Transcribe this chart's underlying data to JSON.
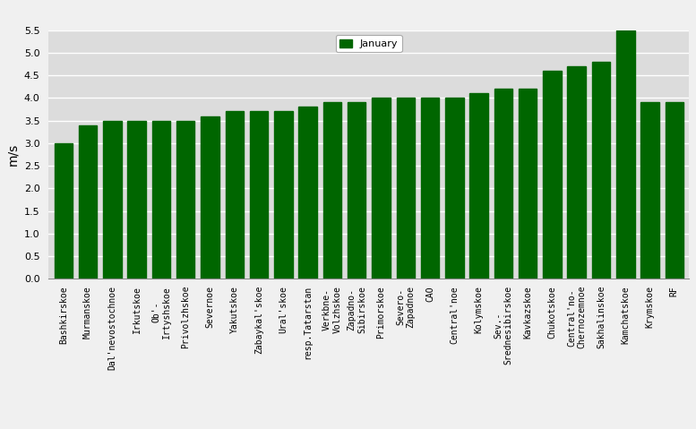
{
  "categories": [
    "Bashkirskoe",
    "Murmanskoe",
    "Dal'nevostochnoe",
    "Irkutskoe",
    "Ob'-\nIrtyshskoe",
    "Privolzhskoe",
    "Severnoe",
    "Yakutskoe",
    "Zabaykal'skoe",
    "Ural'skoe",
    "resp.Tatarstan",
    "Verkbne-\nVolzhskoe",
    "Zapadno-\nSibirskoe",
    "Primorskoe",
    "Severo-\nZapadnoe",
    "CAO",
    "Central'noe",
    "Kolymskoe",
    "Sev.-\nSrednesibirskoe",
    "Kavkazskoe",
    "Chukotskoe",
    "Central'no-\nChernozemnoe",
    "Sakhalinskoe",
    "Kamchatskoe",
    "Krymskoe",
    "RF"
  ],
  "values": [
    3.0,
    3.4,
    3.5,
    3.5,
    3.5,
    3.5,
    3.6,
    3.7,
    3.7,
    3.7,
    3.8,
    3.9,
    3.9,
    4.0,
    4.0,
    4.0,
    4.0,
    4.1,
    4.2,
    4.2,
    4.6,
    4.7,
    4.8,
    5.5,
    3.9,
    3.9
  ],
  "bar_color": "#006600",
  "ylabel": "m/s",
  "ylim": [
    0,
    5.5
  ],
  "yticks": [
    0,
    0.5,
    1.0,
    1.5,
    2.0,
    2.5,
    3.0,
    3.5,
    4.0,
    4.5,
    5.0,
    5.5
  ],
  "legend_label": "January",
  "legend_color": "#006600",
  "plot_bg_color": "#dcdcdc",
  "fig_bg_color": "#f0f0f0",
  "grid_color": "#ffffff"
}
